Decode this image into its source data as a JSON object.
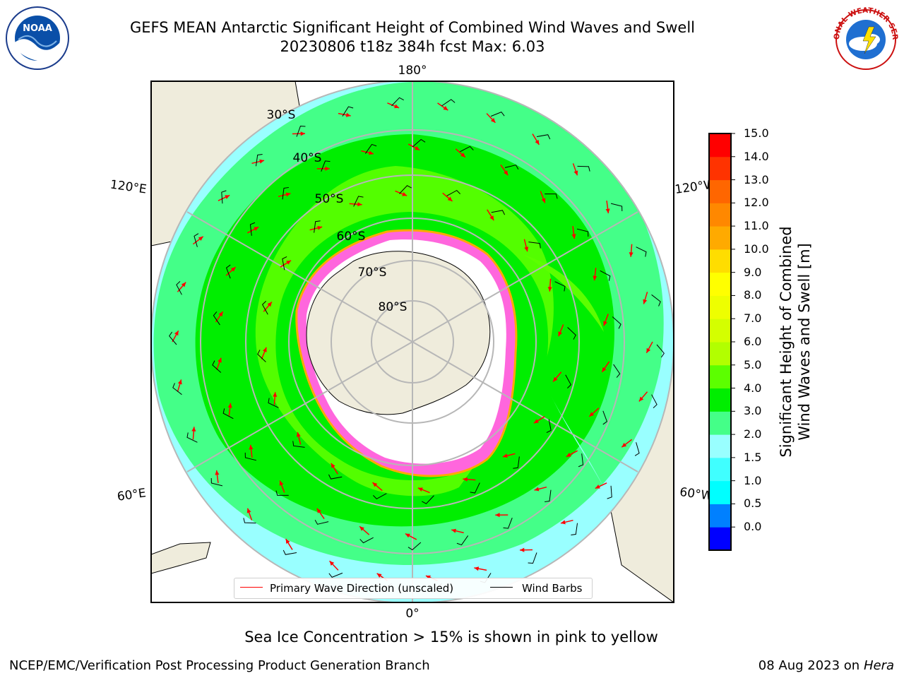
{
  "title": {
    "line1": "GEFS MEAN Antarctic Significant Height of Combined Wind Waves and Swell",
    "line2": "20230806 t18z 384h fcst   Max: 6.03"
  },
  "logos": {
    "left": {
      "name": "noaa-logo",
      "text": "NOAA"
    },
    "right": {
      "name": "nws-logo",
      "text": "NATIONAL WEATHER SERVICE"
    }
  },
  "map": {
    "projection": "south-polar-stereographic",
    "longitude_labels": {
      "top": "180°",
      "bottom": "0°",
      "upper_left": "120°E",
      "upper_right": "120°W",
      "lower_left": "60°E",
      "lower_right": "60°W"
    },
    "latitude_labels": [
      "30°S",
      "40°S",
      "50°S",
      "60°S",
      "70°S",
      "80°S"
    ],
    "colors": {
      "land": "#efecdc",
      "ice_edge": "#ff44dd",
      "ice_inner": "#ffffff",
      "graticule": "#b7b7b7",
      "wave_arrow": "#ff0000",
      "wind_barb": "#000000"
    }
  },
  "colorbar": {
    "ticks": [
      "15.0",
      "14.0",
      "13.0",
      "12.0",
      "11.0",
      "10.0",
      "9.0",
      "8.0",
      "7.0",
      "6.0",
      "5.0",
      "4.0",
      "3.0",
      "2.0",
      "1.5",
      "1.0",
      "0.5",
      "0.0"
    ],
    "colors": [
      "#0000ff",
      "#0080ff",
      "#00ffff",
      "#40ffff",
      "#99ffff",
      "#44ff88",
      "#00ee00",
      "#5cff00",
      "#b2ff00",
      "#d4ff00",
      "#eeff00",
      "#ffff00",
      "#ffdd00",
      "#ffaa00",
      "#ff8800",
      "#ff6600",
      "#ff3300",
      "#ff0000"
    ],
    "label_line1": "Significant Height of Combined",
    "label_line2": "Wind Waves and Swell [m]"
  },
  "legend": {
    "wave_label": "Primary Wave Direction (unscaled)",
    "wave_color": "#ff0000",
    "barb_label": "Wind Barbs",
    "barb_color": "#000000"
  },
  "note": "Sea Ice Concentration > 15% is shown in pink to yellow",
  "footer": {
    "left": "NCEP/EMC/Verification Post Processing Product Generation Branch",
    "right_date": "08 Aug 2023 on",
    "right_host": "Hera"
  }
}
